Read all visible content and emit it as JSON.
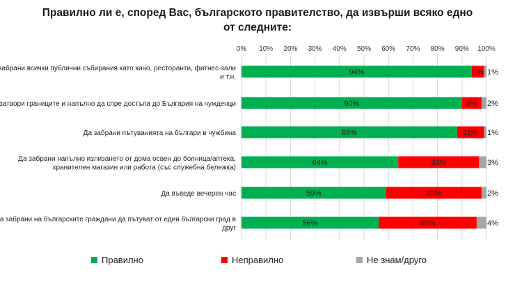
{
  "chart_data": {
    "type": "bar",
    "orientation": "horizontal",
    "stacked": true,
    "title": "Правилно ли е, според Вас, българското правителство, да извърши всяко едно от следните:",
    "xlim": [
      0,
      100
    ],
    "x_tick_labels": [
      "0%",
      "10%",
      "20%",
      "30%",
      "40%",
      "50%",
      "60%",
      "70%",
      "80%",
      "90%",
      "100%"
    ],
    "grid": true,
    "legend_position": "bottom",
    "categories": [
      [
        "Да забрани всички публични събирания като кино, ресторанти, фитнес-зали",
        "и т.н."
      ],
      [
        "Да затвори границите и напълно да спре достъпа до България на чужденци"
      ],
      [
        "Да забрани пътуванията на българи в чужбина"
      ],
      [
        "Да забрани напълно излизането от дома освен до болница/аптека,",
        "хранителен магазин или работа (със служебна бележка)"
      ],
      [
        "Да въведе вечерен час"
      ],
      [
        "Да забрани на българските граждани да пътуват от един български град в",
        "друг"
      ]
    ],
    "series": [
      {
        "name": "Правилно",
        "color": "#00b050",
        "values": [
          94,
          90,
          88,
          64,
          59,
          56
        ],
        "labels": [
          "94%",
          "90%",
          "88%",
          "64%",
          "59%",
          "56%"
        ]
      },
      {
        "name": "Неправилно",
        "color": "#ff0000",
        "values": [
          5,
          8,
          11,
          33,
          39,
          40
        ],
        "labels": [
          "5%",
          "8%",
          "11%",
          "33%",
          "39%",
          "40%"
        ]
      },
      {
        "name": "Не знам/друго",
        "color": "#a6a6a6",
        "values": [
          1,
          2,
          1,
          3,
          2,
          4
        ],
        "labels": [
          "1%",
          "2%",
          "1%",
          "3%",
          "2%",
          "4%"
        ]
      }
    ]
  }
}
